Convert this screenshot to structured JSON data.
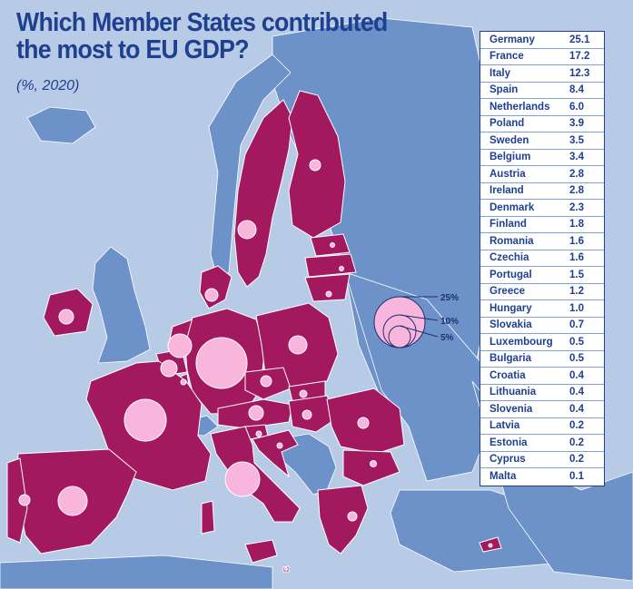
{
  "title_line1": "Which Member States contributed",
  "title_line2": "the most to EU GDP?",
  "subtitle": "(%, 2020)",
  "colors": {
    "sea": "#b8cbe6",
    "non_eu_land": "#6d92c9",
    "eu_land": "#a2195f",
    "bubble": "#f9b6dd",
    "title": "#1f3f8f"
  },
  "legend": {
    "labels": [
      "25%",
      "10%",
      "5%"
    ],
    "values": [
      25,
      10,
      5
    ]
  },
  "table": [
    {
      "country": "Germany",
      "value": "25.1"
    },
    {
      "country": "France",
      "value": "17.2"
    },
    {
      "country": "Italy",
      "value": "12.3"
    },
    {
      "country": "Spain",
      "value": "8.4"
    },
    {
      "country": "Netherlands",
      "value": "6.0"
    },
    {
      "country": "Poland",
      "value": "3.9"
    },
    {
      "country": "Sweden",
      "value": "3.5"
    },
    {
      "country": "Belgium",
      "value": "3.4"
    },
    {
      "country": "Austria",
      "value": "2.8"
    },
    {
      "country": "Ireland",
      "value": "2.8"
    },
    {
      "country": "Denmark",
      "value": "2.3"
    },
    {
      "country": "Finland",
      "value": "1.8"
    },
    {
      "country": "Romania",
      "value": "1.6"
    },
    {
      "country": "Czechia",
      "value": "1.6"
    },
    {
      "country": "Portugal",
      "value": "1.5"
    },
    {
      "country": "Greece",
      "value": "1.2"
    },
    {
      "country": "Hungary",
      "value": "1.0"
    },
    {
      "country": "Slovakia",
      "value": "0.7"
    },
    {
      "country": "Luxembourg",
      "value": "0.5"
    },
    {
      "country": "Bulgaria",
      "value": "0.5"
    },
    {
      "country": "Croatia",
      "value": "0.4"
    },
    {
      "country": "Lithuania",
      "value": "0.4"
    },
    {
      "country": "Slovenia",
      "value": "0.4"
    },
    {
      "country": "Latvia",
      "value": "0.2"
    },
    {
      "country": "Estonia",
      "value": "0.2"
    },
    {
      "country": "Cyprus",
      "value": "0.2"
    },
    {
      "country": "Malta",
      "value": "0.1"
    }
  ]
}
